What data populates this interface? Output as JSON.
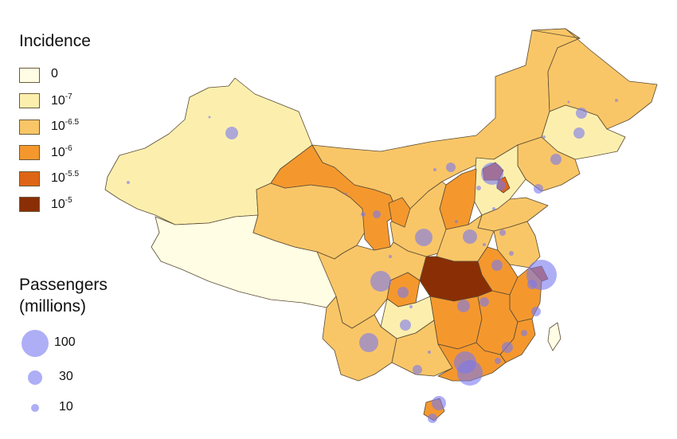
{
  "legend": {
    "title": "Incidence",
    "items": [
      {
        "base": "0",
        "exp": "",
        "color": "#FFFDE3"
      },
      {
        "base": "10",
        "exp": "-7",
        "color": "#FCEFAE"
      },
      {
        "base": "10",
        "exp": "-6.5",
        "color": "#F9C667"
      },
      {
        "base": "10",
        "exp": "-6",
        "color": "#F4982E"
      },
      {
        "base": "10",
        "exp": "-5.5",
        "color": "#DE6516"
      },
      {
        "base": "10",
        "exp": "-5",
        "color": "#8A2E05"
      }
    ]
  },
  "passengers": {
    "title_line1": "Passengers",
    "title_line2": "(millions)",
    "items": [
      {
        "label": "100",
        "value": 100
      },
      {
        "label": "30",
        "value": 30
      },
      {
        "label": "10",
        "value": 10
      }
    ]
  },
  "colors": {
    "border": "#5a4a33",
    "bubble": "#7878F0"
  }
}
